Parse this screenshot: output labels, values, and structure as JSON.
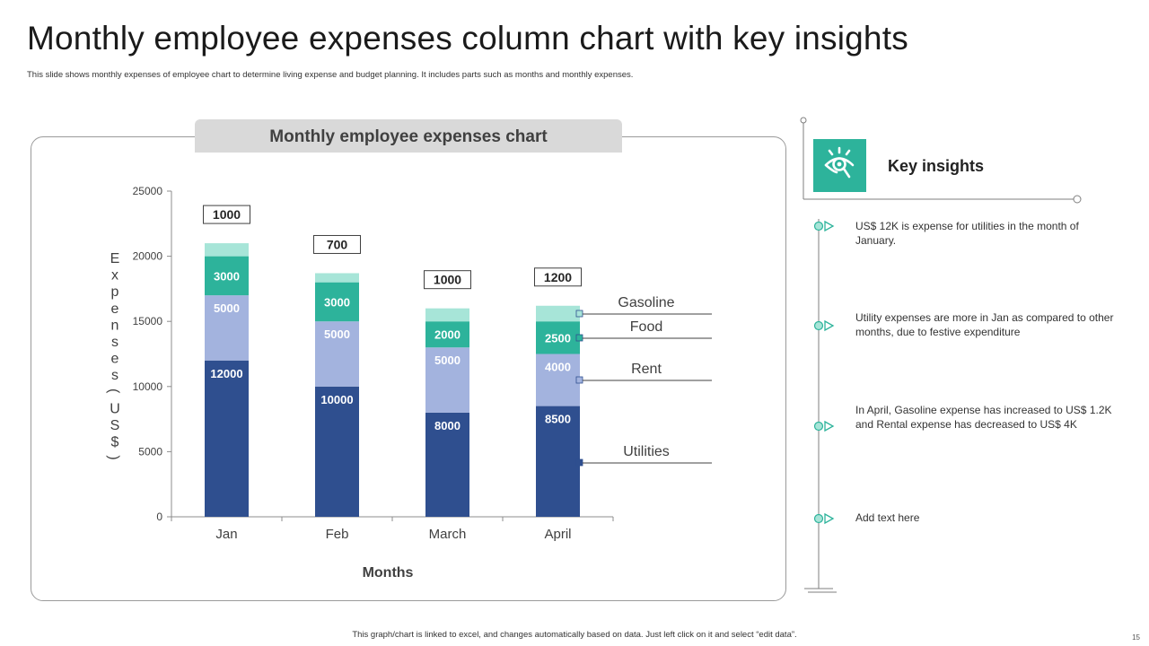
{
  "page": {
    "title": "Monthly employee expenses column chart with key insights",
    "subtitle": "This slide shows monthly expenses of employee chart to determine living expense and budget planning. It includes parts  such as months and monthly expenses.",
    "footer": "This graph/chart is linked to excel, and changes automatically based on data. Just left click on it and select “edit data”.",
    "page_number": "15"
  },
  "chart_data": {
    "type": "bar",
    "stacked": true,
    "title": "Monthly employee expenses chart",
    "xlabel": "Months",
    "ylabel": "Expenses(US$)",
    "ylim": [
      0,
      25000
    ],
    "yticks": [
      0,
      5000,
      10000,
      15000,
      20000,
      25000
    ],
    "categories": [
      "Jan",
      "Feb",
      "March",
      "April"
    ],
    "series": [
      {
        "name": "Utilities",
        "values": [
          12000,
          10000,
          8000,
          8500
        ],
        "color": "#2f4f8f"
      },
      {
        "name": "Rent",
        "values": [
          5000,
          5000,
          5000,
          4000
        ],
        "color": "#a3b3de"
      },
      {
        "name": "Food",
        "values": [
          3000,
          3000,
          2000,
          2500
        ],
        "color": "#2db39b"
      },
      {
        "name": "Gasoline",
        "values": [
          1000,
          700,
          1000,
          1200
        ],
        "color": "#a7e5d8"
      }
    ],
    "legend_placement": "right"
  },
  "insights": {
    "title": "Key insights",
    "icon": "eye-magnifier-icon",
    "accent": "#2db39b",
    "items": [
      "US$ 12K is expense for utilities in the month of January.",
      "Utility expenses are more in Jan as compared to other months, due to festive expenditure",
      "In April, Gasoline expense has increased to US$ 1.2K and Rental expense has decreased to US$ 4K",
      "Add text here"
    ]
  }
}
